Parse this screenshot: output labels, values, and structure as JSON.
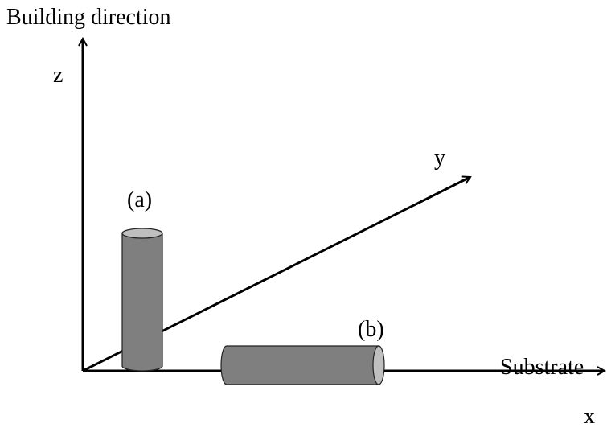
{
  "title": "Building direction",
  "axes": {
    "z": "z",
    "y": "y",
    "x": "x"
  },
  "substrate_label": "Substrate",
  "samples": {
    "a": "(a)",
    "b": "(b)"
  }
}
